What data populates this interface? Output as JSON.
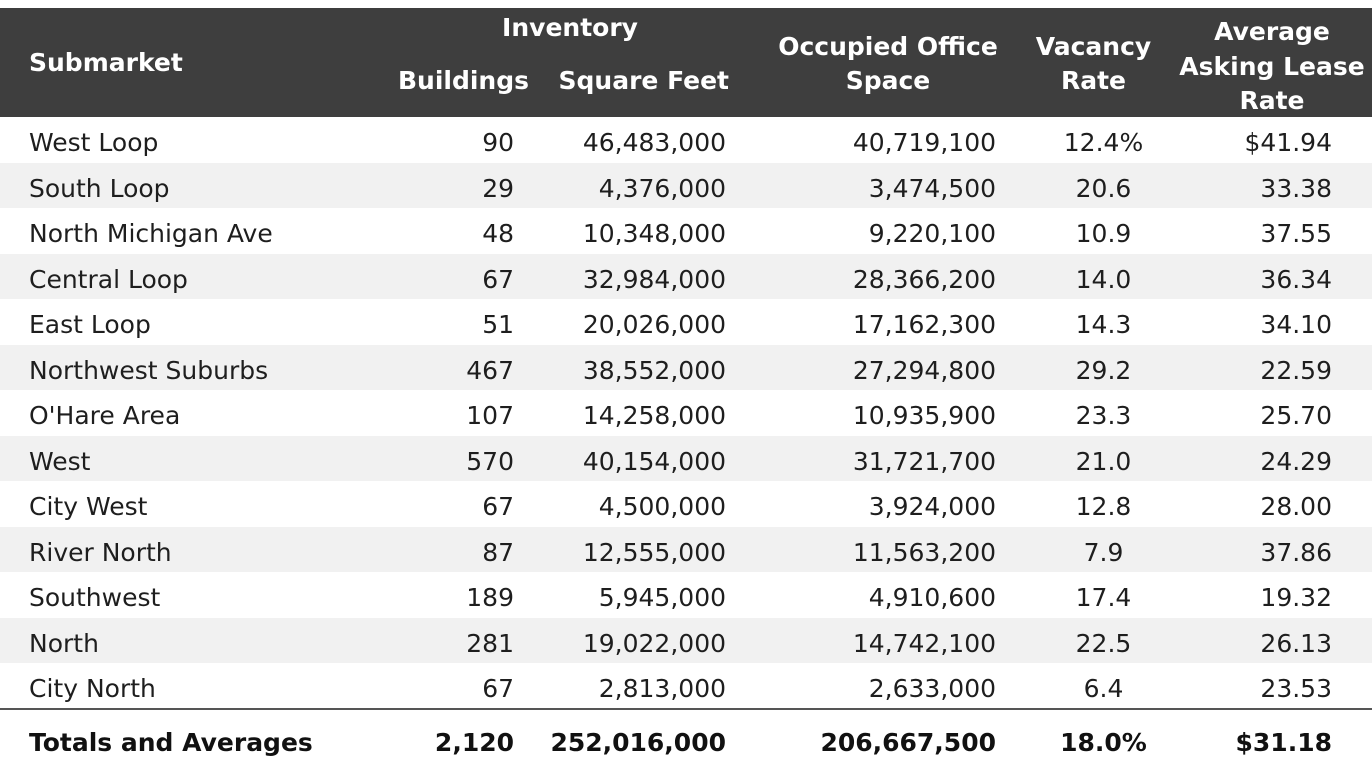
{
  "header": {
    "submarket": "Submarket",
    "inventory": "Inventory",
    "buildings": "Buildings",
    "square_feet": "Square Feet",
    "occupied_line1": "Occupied Office",
    "occupied_line2": "Space",
    "vacancy_line1": "Vacancy",
    "vacancy_line2": "Rate",
    "asking_line1": "Average",
    "asking_line2": "Asking Lease",
    "asking_line3": "Rate"
  },
  "rows": [
    {
      "name": "West Loop",
      "buildings": "90",
      "sqft": "46,483,000",
      "occupied": "40,719,100",
      "vacancy": "12.4%",
      "asking": "$41.94"
    },
    {
      "name": "South Loop",
      "buildings": "29",
      "sqft": "4,376,000",
      "occupied": "3,474,500",
      "vacancy": "20.6",
      "asking": "33.38"
    },
    {
      "name": "North Michigan Ave",
      "buildings": "48",
      "sqft": "10,348,000",
      "occupied": "9,220,100",
      "vacancy": "10.9",
      "asking": "37.55"
    },
    {
      "name": "Central Loop",
      "buildings": "67",
      "sqft": "32,984,000",
      "occupied": "28,366,200",
      "vacancy": "14.0",
      "asking": "36.34"
    },
    {
      "name": "East Loop",
      "buildings": "51",
      "sqft": "20,026,000",
      "occupied": "17,162,300",
      "vacancy": "14.3",
      "asking": "34.10"
    },
    {
      "name": "Northwest Suburbs",
      "buildings": "467",
      "sqft": "38,552,000",
      "occupied": "27,294,800",
      "vacancy": "29.2",
      "asking": "22.59"
    },
    {
      "name": "O'Hare Area",
      "buildings": "107",
      "sqft": "14,258,000",
      "occupied": "10,935,900",
      "vacancy": "23.3",
      "asking": "25.70"
    },
    {
      "name": "West",
      "buildings": "570",
      "sqft": "40,154,000",
      "occupied": "31,721,700",
      "vacancy": "21.0",
      "asking": "24.29"
    },
    {
      "name": "City West",
      "buildings": "67",
      "sqft": "4,500,000",
      "occupied": "3,924,000",
      "vacancy": "12.8",
      "asking": "28.00"
    },
    {
      "name": "River North",
      "buildings": "87",
      "sqft": "12,555,000",
      "occupied": "11,563,200",
      "vacancy": "7.9",
      "asking": "37.86"
    },
    {
      "name": "Southwest",
      "buildings": "189",
      "sqft": "5,945,000",
      "occupied": "4,910,600",
      "vacancy": "17.4",
      "asking": "19.32"
    },
    {
      "name": "North",
      "buildings": "281",
      "sqft": "19,022,000",
      "occupied": "14,742,100",
      "vacancy": "22.5",
      "asking": "26.13"
    },
    {
      "name": "City North",
      "buildings": "67",
      "sqft": "2,813,000",
      "occupied": "2,633,000",
      "vacancy": "6.4",
      "asking": "23.53"
    }
  ],
  "totals": {
    "name": "Totals and Averages",
    "buildings": "2,120",
    "sqft": "252,016,000",
    "occupied": "206,667,500",
    "vacancy": "18.0%",
    "asking": "$31.18"
  },
  "colors": {
    "header_bg": "#3e3e3e",
    "header_text": "#ffffff",
    "alt_row_bg": "#f1f1f1"
  }
}
